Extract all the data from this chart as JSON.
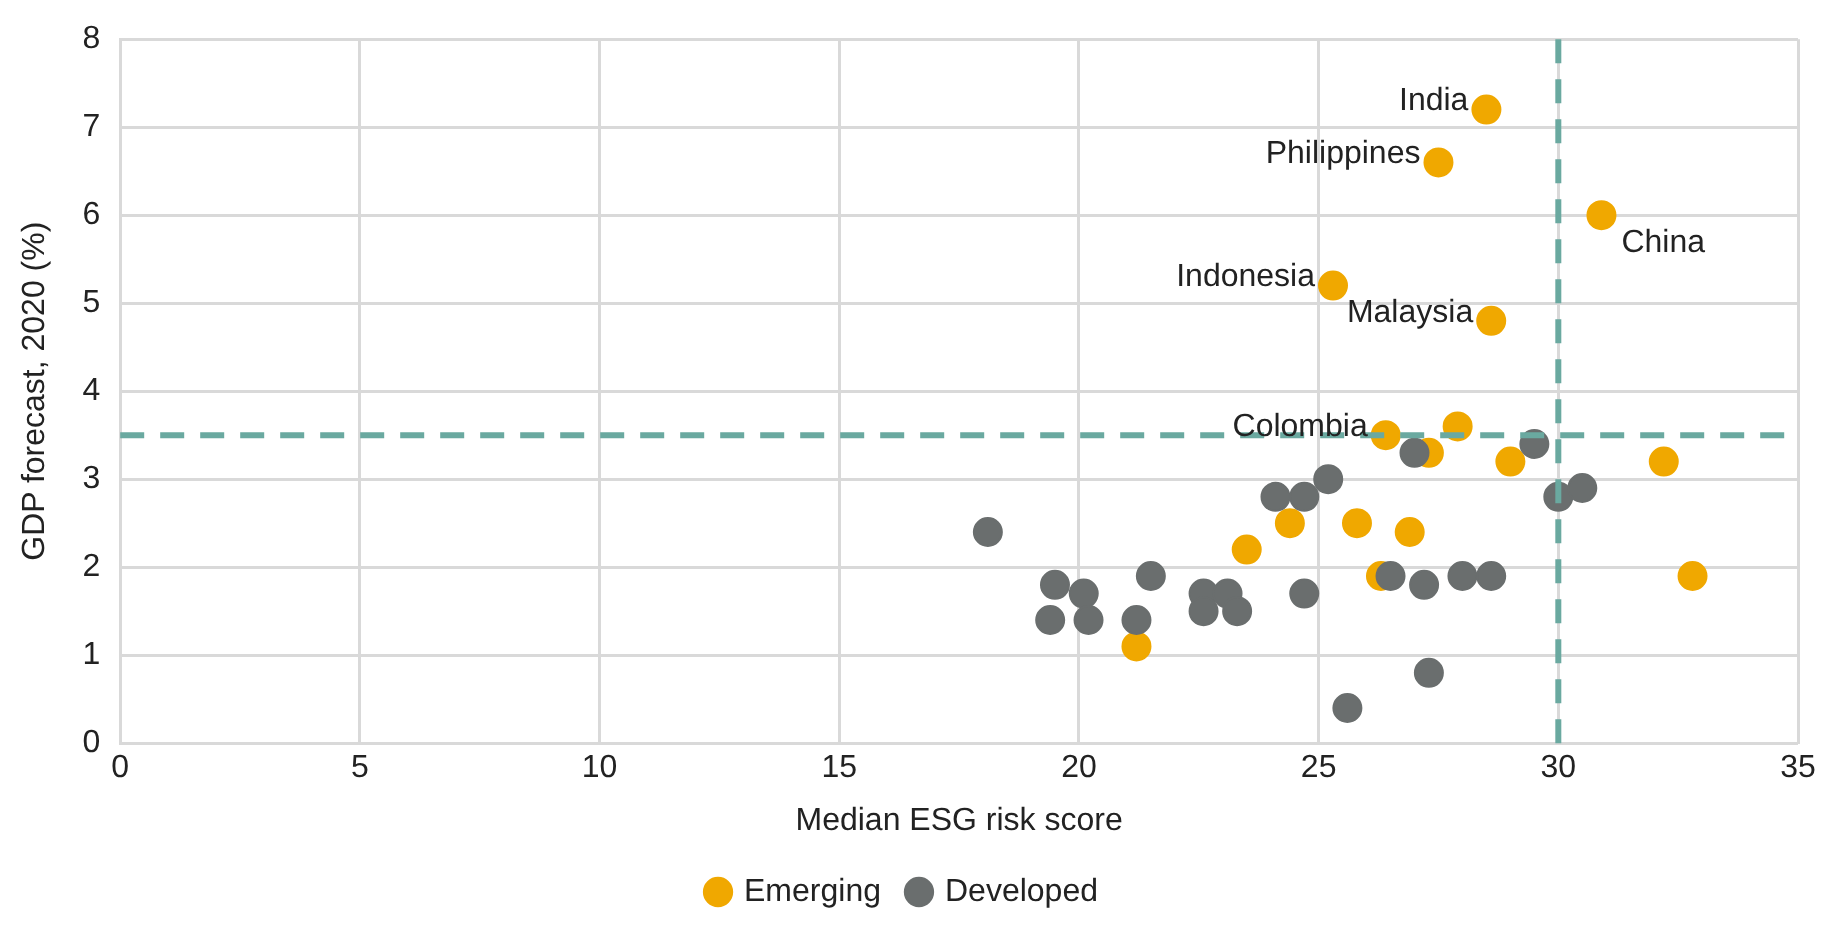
{
  "chart_data": {
    "type": "scatter",
    "xlabel": "Median ESG risk score",
    "ylabel": "GDP forecast, 2020 (%)",
    "xlim": [
      0,
      35
    ],
    "xticks": [
      0,
      5,
      10,
      15,
      20,
      25,
      30,
      35
    ],
    "ylim": [
      0,
      8
    ],
    "yticks": [
      0,
      1,
      2,
      3,
      4,
      5,
      6,
      7,
      8
    ],
    "grid": true,
    "legend": "bottom",
    "marker": "circle",
    "series": [
      {
        "name": "Emerging",
        "color": "#f0a800",
        "x": [
          28.5,
          27.5,
          30.9,
          25.3,
          28.6,
          26.4,
          27.9,
          27.3,
          29.0,
          32.2,
          32.8,
          23.5,
          24.4,
          25.8,
          26.9,
          26.3,
          21.2
        ],
        "values": [
          7.2,
          6.6,
          6.0,
          5.2,
          4.8,
          3.5,
          3.6,
          3.3,
          3.2,
          3.2,
          1.9,
          2.2,
          2.5,
          2.5,
          2.4,
          1.9,
          1.1
        ]
      },
      {
        "name": "Developed",
        "color": "#6a6e6e",
        "x": [
          18.1,
          19.5,
          19.4,
          20.1,
          20.2,
          21.2,
          21.5,
          22.6,
          22.6,
          23.1,
          23.3,
          24.7,
          24.1,
          24.7,
          25.2,
          27.0,
          26.5,
          27.2,
          28.0,
          28.6,
          29.5,
          30.0,
          30.5,
          27.3,
          25.6
        ],
        "values": [
          2.4,
          1.8,
          1.4,
          1.7,
          1.4,
          1.4,
          1.9,
          1.7,
          1.5,
          1.7,
          1.5,
          1.7,
          2.8,
          2.8,
          3.0,
          3.3,
          1.9,
          1.8,
          1.9,
          1.9,
          3.4,
          2.8,
          2.9,
          0.8,
          0.4
        ]
      }
    ],
    "ref_lines": [
      {
        "axis": "x",
        "value": 30,
        "label": null,
        "color": "#6aa9a0",
        "line_style": "dashed"
      },
      {
        "axis": "y",
        "value": 3.5,
        "label": null,
        "color": "#6aa9a0",
        "line_style": "dashed"
      }
    ],
    "annotations": [
      {
        "text": "India",
        "x": 28.5,
        "y": 7.2
      },
      {
        "text": "Philippines",
        "x": 27.5,
        "y": 6.6
      },
      {
        "text": "China",
        "x": 30.9,
        "y": 6.0
      },
      {
        "text": "Indonesia",
        "x": 25.3,
        "y": 5.2
      },
      {
        "text": "Malaysia",
        "x": 28.6,
        "y": 4.8
      },
      {
        "text": "Colombia",
        "x": 26.4,
        "y": 3.5
      }
    ]
  }
}
